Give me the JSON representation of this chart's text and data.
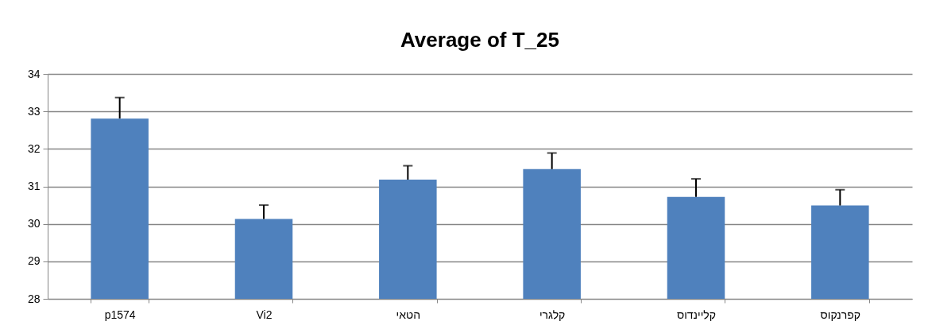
{
  "chart_data": {
    "type": "bar",
    "title": "Average of T_25",
    "categories": [
      "p1574",
      "Vi2",
      "הטאי",
      "קלגרי",
      "קליינדוס",
      "קפרנקוס"
    ],
    "values": [
      32.81,
      30.13,
      31.18,
      31.46,
      30.72,
      30.49
    ],
    "errors": [
      [
        32.81,
        33.37
      ],
      [
        30.13,
        30.5
      ],
      [
        31.18,
        31.55
      ],
      [
        31.46,
        31.89
      ],
      [
        30.72,
        31.2
      ],
      [
        30.49,
        30.91
      ]
    ],
    "color": "#4f81bd",
    "ylim": [
      28,
      34
    ],
    "yticks": [
      28,
      29,
      30,
      31,
      32,
      33,
      34
    ],
    "grid": true
  }
}
